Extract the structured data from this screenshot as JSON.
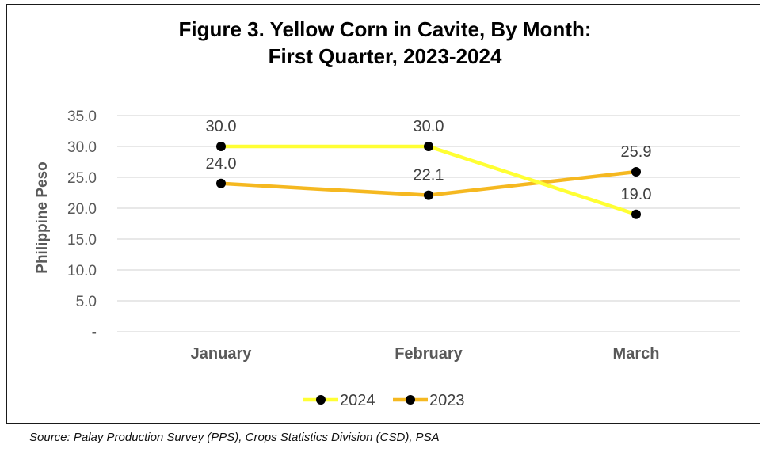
{
  "chart_data": {
    "type": "line",
    "title_line1": "Figure 3. Yellow Corn in Cavite, By Month:",
    "title_line2": "First Quarter, 2023-2024",
    "ylabel": "Philippine Peso",
    "xlabel": "",
    "categories": [
      "January",
      "February",
      "March"
    ],
    "y_ticks": [
      "35.0",
      "30.0",
      "25.0",
      "20.0",
      "15.0",
      "10.0",
      "5.0",
      "-"
    ],
    "ylim": [
      0,
      35
    ],
    "grid": true,
    "legend_position": "bottom",
    "series": [
      {
        "name": "2024",
        "values": [
          30.0,
          30.0,
          19.0
        ],
        "labels": [
          "30.0",
          "30.0",
          "19.0"
        ],
        "color": "#FFFF33"
      },
      {
        "name": "2023",
        "values": [
          24.0,
          22.1,
          25.9
        ],
        "labels": [
          "24.0",
          "22.1",
          "25.9"
        ],
        "color": "#F5B820"
      }
    ],
    "marker_color": "#000000"
  },
  "source": "Source: Palay Production Survey (PPS), Crops Statistics Division (CSD), PSA"
}
